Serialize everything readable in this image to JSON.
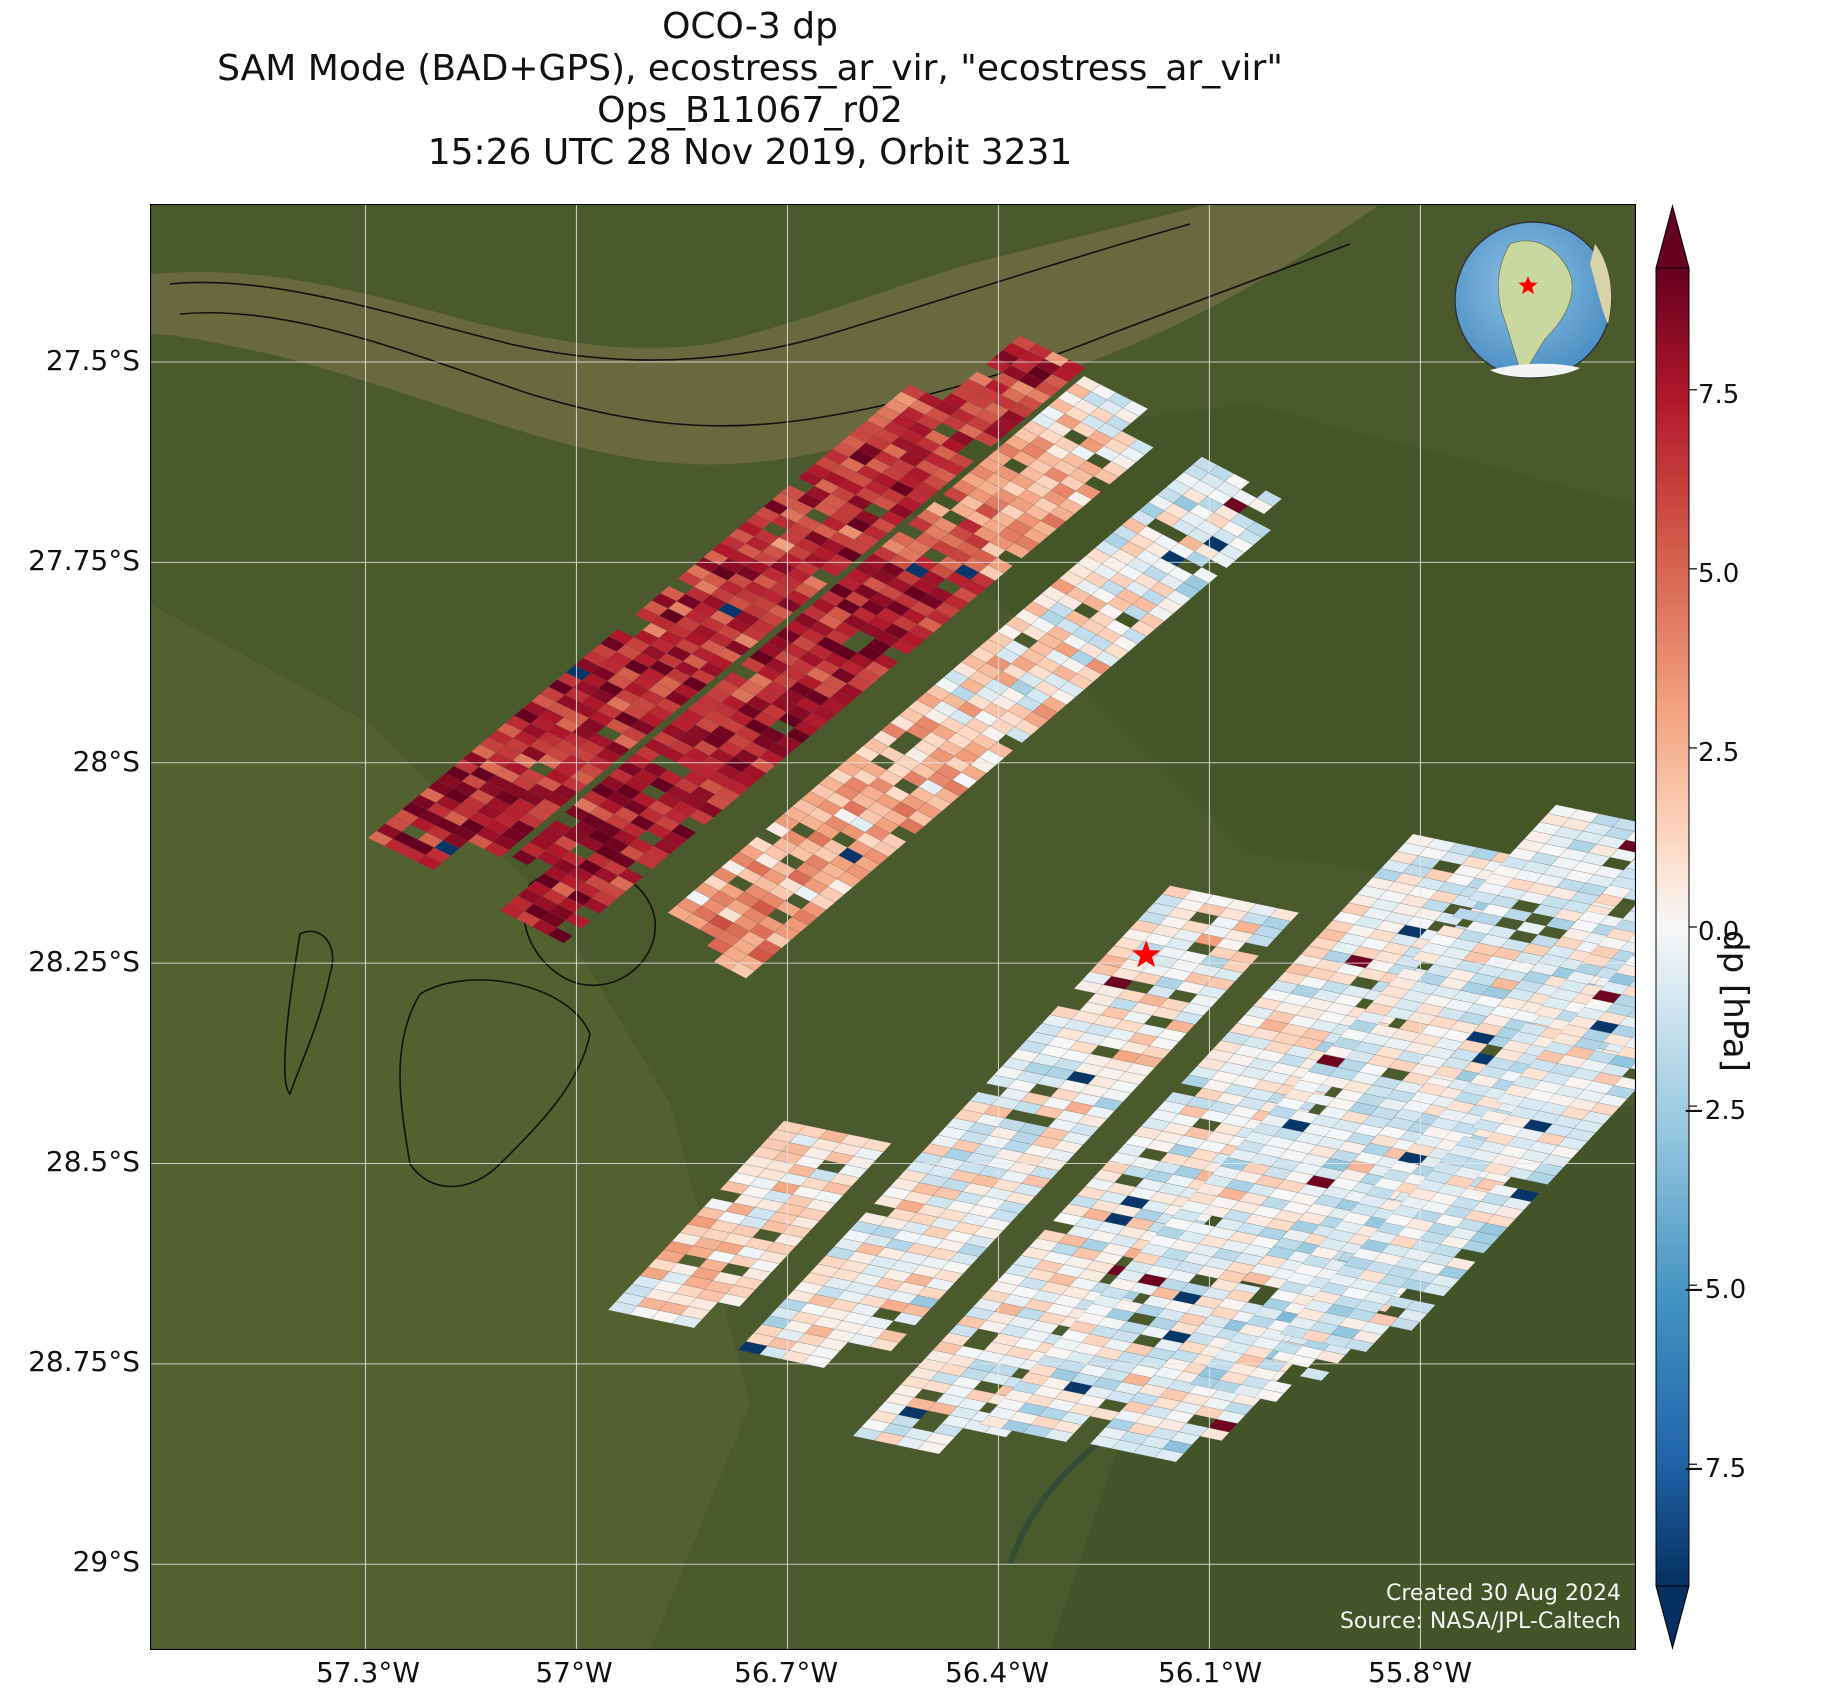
{
  "title": {
    "line1": "OCO-3 dp",
    "line2": "SAM Mode (BAD+GPS), ecostress_ar_vir, \"ecostress_ar_vir\"",
    "line3": "Ops_B11067_r02",
    "line4": "15:26 UTC 28 Nov 2019, Orbit 3231"
  },
  "axes": {
    "lat_ticks": [
      "27.5°S",
      "27.75°S",
      "28°S",
      "28.25°S",
      "28.5°S",
      "28.75°S",
      "29°S"
    ],
    "lon_ticks": [
      "57.3°W",
      "57°W",
      "56.7°W",
      "56.4°W",
      "56.1°W",
      "55.8°W"
    ]
  },
  "colorbar": {
    "label": "dp [hPa]",
    "ticks": [
      "7.5",
      "5.0",
      "2.5",
      "0.0",
      "−2.5",
      "−5.0",
      "−7.5"
    ],
    "range": [
      -9.2,
      9.2
    ],
    "colormap": "RdBu_r",
    "extend": "both"
  },
  "credits": {
    "created": "Created 30 Aug 2024",
    "source": "Source: NASA/JPL-Caltech"
  },
  "map_features": {
    "background": "satellite-imagery",
    "target_marker": "red-star",
    "target_lon": -56.19,
    "target_lat": -28.24,
    "inset": "globe-south-america"
  },
  "colors": {
    "land": "#4a5a2c",
    "river": "#6b6a40",
    "star": "#ff0000",
    "grid": "#e8e8e8"
  }
}
